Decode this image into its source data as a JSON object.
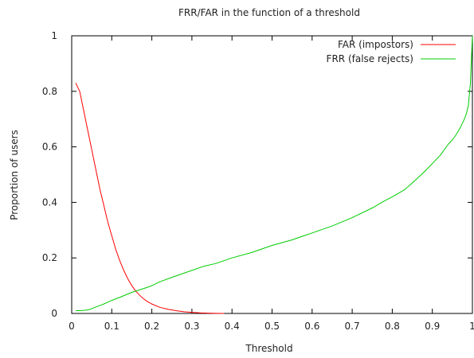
{
  "chart_data": {
    "type": "line",
    "title": "FRR/FAR in the function of a threshold",
    "xlabel": "Threshold",
    "ylabel": "Proportion of users",
    "xlim": [
      0,
      1
    ],
    "ylim": [
      0,
      1
    ],
    "xticks": [
      {
        "value": 0,
        "label": "0"
      },
      {
        "value": 0.1,
        "label": "0.1"
      },
      {
        "value": 0.2,
        "label": "0.2"
      },
      {
        "value": 0.3,
        "label": "0.3"
      },
      {
        "value": 0.4,
        "label": "0.4"
      },
      {
        "value": 0.5,
        "label": "0.5"
      },
      {
        "value": 0.6,
        "label": "0.6"
      },
      {
        "value": 0.7,
        "label": "0.7"
      },
      {
        "value": 0.8,
        "label": "0.8"
      },
      {
        "value": 0.9,
        "label": "0.9"
      },
      {
        "value": 1,
        "label": "1"
      }
    ],
    "yticks": [
      {
        "value": 0,
        "label": "0"
      },
      {
        "value": 0.2,
        "label": "0.2"
      },
      {
        "value": 0.4,
        "label": "0.4"
      },
      {
        "value": 0.6,
        "label": "0.6"
      },
      {
        "value": 0.8,
        "label": "0.8"
      },
      {
        "value": 1,
        "label": "1"
      }
    ],
    "grid": false,
    "legend_position": "top-right",
    "series": [
      {
        "name": "FAR (impostors)",
        "color": "#ff0000",
        "x": [
          0.01,
          0.02,
          0.03,
          0.04,
          0.05,
          0.06,
          0.07,
          0.08,
          0.09,
          0.1,
          0.11,
          0.12,
          0.13,
          0.14,
          0.15,
          0.16,
          0.17,
          0.18,
          0.19,
          0.2,
          0.22,
          0.24,
          0.26,
          0.28,
          0.3,
          0.32,
          0.34,
          0.36,
          0.38
        ],
        "y": [
          0.83,
          0.8,
          0.73,
          0.66,
          0.59,
          0.52,
          0.45,
          0.39,
          0.33,
          0.28,
          0.23,
          0.19,
          0.155,
          0.125,
          0.1,
          0.08,
          0.065,
          0.052,
          0.042,
          0.034,
          0.022,
          0.015,
          0.01,
          0.006,
          0.004,
          0.002,
          0.001,
          0.0005,
          0.0
        ]
      },
      {
        "name": "FRR (false rejects)",
        "color": "#00cc00",
        "x": [
          0.01,
          0.02,
          0.03,
          0.04,
          0.05,
          0.06,
          0.08,
          0.1,
          0.12,
          0.15,
          0.18,
          0.2,
          0.22,
          0.25,
          0.28,
          0.3,
          0.33,
          0.36,
          0.4,
          0.45,
          0.5,
          0.55,
          0.6,
          0.65,
          0.7,
          0.75,
          0.78,
          0.8,
          0.83,
          0.85,
          0.88,
          0.9,
          0.92,
          0.94,
          0.95,
          0.96,
          0.97,
          0.98,
          0.985,
          0.99,
          0.995,
          1.0
        ],
        "y": [
          0.01,
          0.01,
          0.011,
          0.013,
          0.017,
          0.023,
          0.034,
          0.047,
          0.058,
          0.076,
          0.09,
          0.1,
          0.114,
          0.13,
          0.145,
          0.155,
          0.17,
          0.18,
          0.2,
          0.22,
          0.245,
          0.265,
          0.29,
          0.315,
          0.345,
          0.38,
          0.405,
          0.42,
          0.445,
          0.47,
          0.51,
          0.54,
          0.57,
          0.61,
          0.625,
          0.645,
          0.67,
          0.7,
          0.72,
          0.75,
          0.83,
          1.0
        ]
      }
    ]
  }
}
